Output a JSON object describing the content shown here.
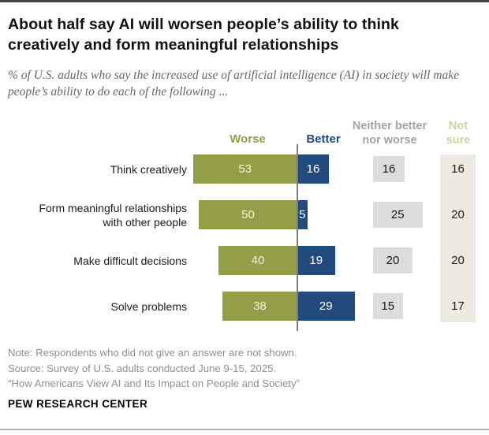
{
  "header": {
    "title": "About half say AI will worsen people’s ability to think creatively and form meaningful relationships",
    "subtitle": "% of U.S. adults who say the increased use of artificial intelligence (AI) in society will make people’s ability to do each of the following ..."
  },
  "chart_data": {
    "type": "bar",
    "variant": "diverging-horizontal",
    "unit": "%",
    "legend_position": "top",
    "categories": [
      "Think creatively",
      "Form meaningful relationships with other people",
      "Make difficult decisions",
      "Solve problems"
    ],
    "series": [
      {
        "name": "Worse",
        "values": [
          53,
          50,
          40,
          38
        ]
      },
      {
        "name": "Better",
        "values": [
          16,
          5,
          19,
          29
        ]
      },
      {
        "name": "Neither better nor worse",
        "values": [
          16,
          25,
          20,
          15
        ]
      },
      {
        "name": "Not sure",
        "values": [
          16,
          20,
          20,
          17
        ]
      }
    ],
    "colors": {
      "worse_bar": "#949d48",
      "better_bar": "#234a7c",
      "neither_box": "#dcdcdc",
      "notsure_strip": "#edebe1",
      "worse_label": "#949d48",
      "better_label": "#234a7c",
      "neither_label": "#a3a3a3",
      "notsure_label": "#d5d0a4",
      "value_on_worse": "#f7f2dd",
      "value_on_better": "#ffffff",
      "value_dark": "#1a1a1a",
      "axis_line": "#7d7d7d"
    }
  },
  "footer": {
    "notes": [
      "Note: Respondents who did not give an answer are not shown.",
      "Source: Survey of U.S. adults conducted June 9-15, 2025.",
      "“How Americans View AI and Its Impact on People and Society”"
    ],
    "brand": "PEW RESEARCH CENTER"
  }
}
